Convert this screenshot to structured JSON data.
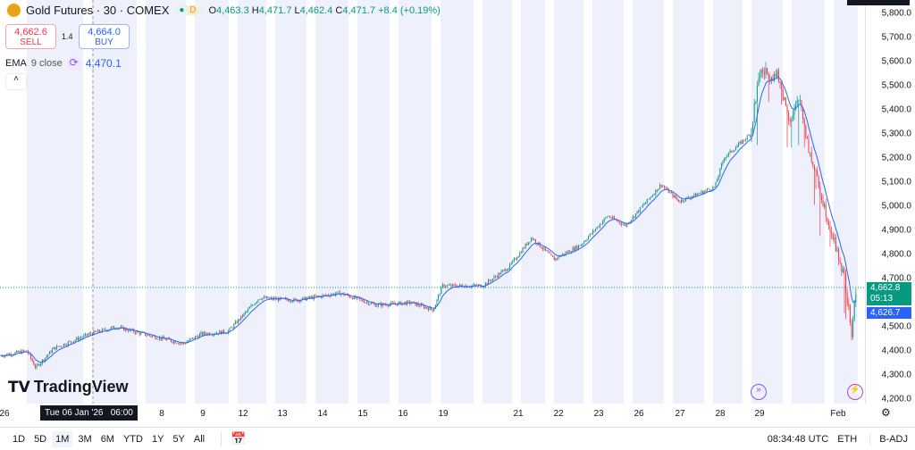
{
  "header": {
    "symbol": "Gold Futures · 30 · COMEX",
    "market_badge": "D",
    "open_label": "O",
    "open": "4,463.3",
    "high_label": "H",
    "high": "4,471.7",
    "low_label": "L",
    "low": "4,462.4",
    "close_label": "C",
    "close": "4,471.7",
    "change": "+8.4 (+0.19%)"
  },
  "trade": {
    "sell_price": "4,662.6",
    "sell_label": "SELL",
    "spread": "1.4",
    "buy_price": "4,664.0",
    "buy_label": "BUY"
  },
  "indicator": {
    "name": "EMA",
    "params": "9 close",
    "value": "4,470.1"
  },
  "price_axis": {
    "ticks": [
      "5,800.0",
      "5,700.0",
      "5,600.0",
      "5,500.0",
      "5,400.0",
      "5,300.0",
      "5,200.0",
      "5,100.0",
      "5,000.0",
      "4,900.0",
      "4,800.0",
      "4,700.0",
      "4,600.0",
      "4,500.0",
      "4,400.0",
      "4,300.0",
      "4,200.0"
    ],
    "last_price": "4,662.8",
    "countdown": "05:13",
    "ema_price": "4,626.7"
  },
  "time_axis": {
    "ticks": [
      "26",
      "8",
      "9",
      "12",
      "13",
      "14",
      "15",
      "16",
      "19",
      "21",
      "22",
      "23",
      "26",
      "27",
      "28",
      "29",
      "Feb"
    ],
    "crosshair_label": "Tue 06 Jan '26   06:00"
  },
  "bottom_bar": {
    "ranges": [
      "1D",
      "5D",
      "1M",
      "3M",
      "6M",
      "YTD",
      "1Y",
      "5Y",
      "All"
    ],
    "active_range": "1M",
    "clock": "08:34:48 UTC",
    "session": "ETH",
    "adjust": "B-ADJ"
  },
  "logo": "TradingView",
  "colors": {
    "up": "#089981",
    "down": "#f23645",
    "ema": "#2962ff",
    "band": "#eef1fc"
  },
  "chart_data": {
    "type": "candlestick",
    "ylim": [
      4200,
      5800
    ],
    "approx_close_path": [
      4380,
      4400,
      4330,
      4410,
      4470,
      4500,
      4470,
      4430,
      4470,
      4480,
      4560,
      4620,
      4610,
      4640,
      4590,
      4600,
      4570,
      4670,
      4670,
      4750,
      4870,
      4780,
      4840,
      4960,
      4920,
      5090,
      5020,
      5080,
      5200,
      5300,
      5560,
      5540,
      5350,
      5450,
      5240,
      5100,
      4900,
      4700,
      4470,
      4650
    ]
  }
}
